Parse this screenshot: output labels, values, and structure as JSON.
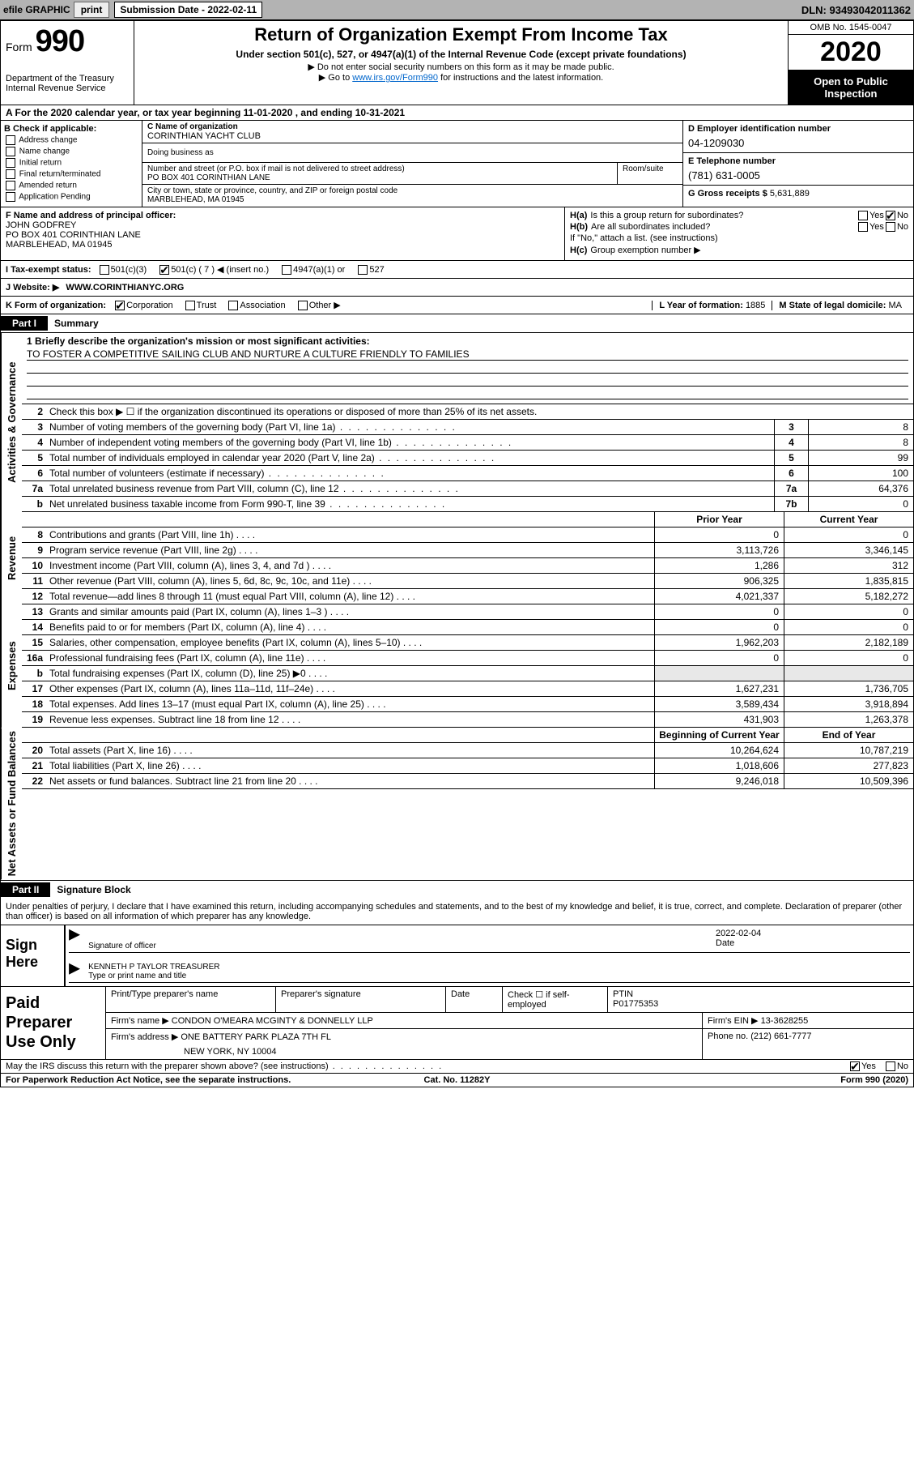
{
  "topbar": {
    "efile_label": "efile GRAPHIC",
    "print_btn": "print",
    "submission_label": "Submission Date - ",
    "submission_date": "2022-02-11",
    "dln_label": "DLN: ",
    "dln": "93493042011362"
  },
  "header": {
    "form_word": "Form",
    "form_num": "990",
    "dept": "Department of the Treasury\nInternal Revenue Service",
    "title": "Return of Organization Exempt From Income Tax",
    "sub": "Under section 501(c), 527, or 4947(a)(1) of the Internal Revenue Code (except private foundations)",
    "note1": "▶ Do not enter social security numbers on this form as it may be made public.",
    "note2_pre": "▶ Go to ",
    "note2_link": "www.irs.gov/Form990",
    "note2_post": " for instructions and the latest information.",
    "omb": "OMB No. 1545-0047",
    "year": "2020",
    "open": "Open to Public Inspection"
  },
  "line_a": "A For the 2020 calendar year, or tax year beginning 11-01-2020    , and ending 10-31-2021",
  "col_b": {
    "hdr": "B Check if applicable:",
    "items": [
      "Address change",
      "Name change",
      "Initial return",
      "Final return/terminated",
      "Amended return",
      "Application Pending"
    ]
  },
  "col_c": {
    "name_lbl": "C Name of organization",
    "name": "CORINTHIAN YACHT CLUB",
    "dba_lbl": "Doing business as",
    "street_lbl": "Number and street (or P.O. box if mail is not delivered to street address)",
    "street": "PO BOX 401 CORINTHIAN LANE",
    "room_lbl": "Room/suite",
    "city_lbl": "City or town, state or province, country, and ZIP or foreign postal code",
    "city": "MARBLEHEAD, MA  01945"
  },
  "col_d": {
    "lbl": "D Employer identification number",
    "val": "04-1209030"
  },
  "col_e": {
    "lbl": "E Telephone number",
    "val": "(781) 631-0005"
  },
  "col_g": {
    "lbl": "G Gross receipts $ ",
    "val": "5,631,889"
  },
  "col_f": {
    "lbl": "F Name and address of principal officer:",
    "name": "JOHN GODFREY",
    "addr1": "PO BOX 401 CORINTHIAN LANE",
    "addr2": "MARBLEHEAD, MA  01945"
  },
  "col_h": {
    "ha_lbl": "H(a)",
    "ha_text": "Is this a group return for subordinates?",
    "hb_lbl": "H(b)",
    "hb_text": "Are all subordinates included?",
    "hb_note": "If \"No,\" attach a list. (see instructions)",
    "hc_lbl": "H(c)",
    "hc_text": "Group exemption number ▶",
    "yes": "Yes",
    "no": "No"
  },
  "line_i": {
    "lbl": "I  Tax-exempt status:",
    "opts": [
      "501(c)(3)",
      "501(c) ( 7 ) ◀ (insert no.)",
      "4947(a)(1) or",
      "527"
    ]
  },
  "line_j": {
    "lbl": "J   Website: ▶",
    "val": "WWW.CORINTHIANYC.ORG"
  },
  "line_k": {
    "lbl": "K Form of organization:",
    "opts": [
      "Corporation",
      "Trust",
      "Association",
      "Other ▶"
    ],
    "l_lbl": "L Year of formation: ",
    "l_val": "1885",
    "m_lbl": "M State of legal domicile: ",
    "m_val": "MA"
  },
  "part1": {
    "tag": "Part I",
    "title": "Summary",
    "gov_label": "Activities & Governance",
    "rev_label": "Revenue",
    "exp_label": "Expenses",
    "net_label": "Net Assets or Fund Balances",
    "line1_lbl": "1  Briefly describe the organization's mission or most significant activities:",
    "line1_val": "TO FOSTER A COMPETITIVE SAILING CLUB AND NURTURE A CULTURE FRIENDLY TO FAMILIES",
    "line2_lbl": "Check this box ▶ ☐  if the organization discontinued its operations or disposed of more than 25% of its net assets.",
    "lines_gov": [
      {
        "n": "3",
        "t": "Number of voting members of the governing body (Part VI, line 1a)",
        "b": "3",
        "v": "8"
      },
      {
        "n": "4",
        "t": "Number of independent voting members of the governing body (Part VI, line 1b)",
        "b": "4",
        "v": "8"
      },
      {
        "n": "5",
        "t": "Total number of individuals employed in calendar year 2020 (Part V, line 2a)",
        "b": "5",
        "v": "99"
      },
      {
        "n": "6",
        "t": "Total number of volunteers (estimate if necessary)",
        "b": "6",
        "v": "100"
      },
      {
        "n": "7a",
        "t": "Total unrelated business revenue from Part VIII, column (C), line 12",
        "b": "7a",
        "v": "64,376"
      },
      {
        "n": "b",
        "t": "Net unrelated business taxable income from Form 990-T, line 39",
        "b": "7b",
        "v": "0"
      }
    ],
    "prior_hdr": "Prior Year",
    "current_hdr": "Current Year",
    "lines_rev": [
      {
        "n": "8",
        "t": "Contributions and grants (Part VIII, line 1h)",
        "p": "0",
        "c": "0"
      },
      {
        "n": "9",
        "t": "Program service revenue (Part VIII, line 2g)",
        "p": "3,113,726",
        "c": "3,346,145"
      },
      {
        "n": "10",
        "t": "Investment income (Part VIII, column (A), lines 3, 4, and 7d )",
        "p": "1,286",
        "c": "312"
      },
      {
        "n": "11",
        "t": "Other revenue (Part VIII, column (A), lines 5, 6d, 8c, 9c, 10c, and 11e)",
        "p": "906,325",
        "c": "1,835,815"
      },
      {
        "n": "12",
        "t": "Total revenue—add lines 8 through 11 (must equal Part VIII, column (A), line 12)",
        "p": "4,021,337",
        "c": "5,182,272"
      }
    ],
    "lines_exp": [
      {
        "n": "13",
        "t": "Grants and similar amounts paid (Part IX, column (A), lines 1–3 )",
        "p": "0",
        "c": "0"
      },
      {
        "n": "14",
        "t": "Benefits paid to or for members (Part IX, column (A), line 4)",
        "p": "0",
        "c": "0"
      },
      {
        "n": "15",
        "t": "Salaries, other compensation, employee benefits (Part IX, column (A), lines 5–10)",
        "p": "1,962,203",
        "c": "2,182,189"
      },
      {
        "n": "16a",
        "t": "Professional fundraising fees (Part IX, column (A), line 11e)",
        "p": "0",
        "c": "0"
      },
      {
        "n": "b",
        "t": "Total fundraising expenses (Part IX, column (D), line 25) ▶0",
        "p": "",
        "c": "",
        "shaded": true
      },
      {
        "n": "17",
        "t": "Other expenses (Part IX, column (A), lines 11a–11d, 11f–24e)",
        "p": "1,627,231",
        "c": "1,736,705"
      },
      {
        "n": "18",
        "t": "Total expenses. Add lines 13–17 (must equal Part IX, column (A), line 25)",
        "p": "3,589,434",
        "c": "3,918,894"
      },
      {
        "n": "19",
        "t": "Revenue less expenses. Subtract line 18 from line 12",
        "p": "431,903",
        "c": "1,263,378"
      }
    ],
    "begin_hdr": "Beginning of Current Year",
    "end_hdr": "End of Year",
    "lines_net": [
      {
        "n": "20",
        "t": "Total assets (Part X, line 16)",
        "p": "10,264,624",
        "c": "10,787,219"
      },
      {
        "n": "21",
        "t": "Total liabilities (Part X, line 26)",
        "p": "1,018,606",
        "c": "277,823"
      },
      {
        "n": "22",
        "t": "Net assets or fund balances. Subtract line 21 from line 20",
        "p": "9,246,018",
        "c": "10,509,396"
      }
    ]
  },
  "part2": {
    "tag": "Part II",
    "title": "Signature Block",
    "penalty": "Under penalties of perjury, I declare that I have examined this return, including accompanying schedules and statements, and to the best of my knowledge and belief, it is true, correct, and complete. Declaration of preparer (other than officer) is based on all information of which preparer has any knowledge.",
    "sign_here": "Sign Here",
    "sig_officer": "Signature of officer",
    "sig_date_lbl": "Date",
    "sig_date": "2022-02-04",
    "sig_name": "KENNETH P TAYLOR  TREASURER",
    "sig_name_lbl": "Type or print name and title",
    "paid": "Paid Preparer Use Only",
    "prep_name_lbl": "Print/Type preparer's name",
    "prep_sig_lbl": "Preparer's signature",
    "prep_date_lbl": "Date",
    "prep_check": "Check ☐ if self-employed",
    "ptin_lbl": "PTIN",
    "ptin": "P01775353",
    "firm_name_lbl": "Firm's name    ▶",
    "firm_name": "CONDON O'MEARA MCGINTY & DONNELLY LLP",
    "firm_ein_lbl": "Firm's EIN ▶",
    "firm_ein": "13-3628255",
    "firm_addr_lbl": "Firm's address ▶",
    "firm_addr1": "ONE BATTERY PARK PLAZA 7TH FL",
    "firm_addr2": "NEW YORK, NY  10004",
    "phone_lbl": "Phone no. ",
    "phone": "(212) 661-7777",
    "discuss": "May the IRS discuss this return with the preparer shown above? (see instructions)",
    "yes": "Yes",
    "no": "No"
  },
  "footer": {
    "l": "For Paperwork Reduction Act Notice, see the separate instructions.",
    "c": "Cat. No. 11282Y",
    "r": "Form 990 (2020)"
  }
}
